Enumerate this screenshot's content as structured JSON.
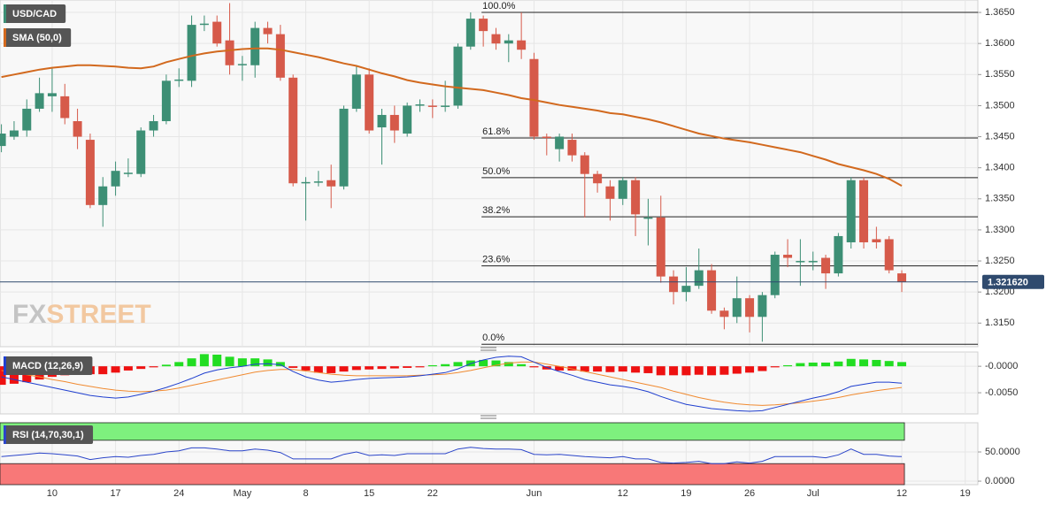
{
  "chart_data": [
    {
      "type": "candlestick",
      "title": "USD/CAD",
      "title_color": "#3d8f75",
      "categories": [
        null,
        null,
        null,
        null,
        "10",
        null,
        null,
        null,
        null,
        "17",
        null,
        null,
        null,
        null,
        "24",
        null,
        null,
        null,
        null,
        "May",
        null,
        null,
        null,
        null,
        "8",
        null,
        null,
        null,
        null,
        "15",
        null,
        null,
        null,
        null,
        "22",
        null,
        null,
        null,
        null,
        null,
        null,
        null,
        "Jun",
        null,
        null,
        null,
        null,
        null,
        null,
        "12",
        null,
        null,
        null,
        null,
        "19",
        null,
        null,
        null,
        null,
        "26",
        null,
        null,
        null,
        null,
        "Jul",
        null,
        null,
        null,
        null,
        null,
        null,
        "12",
        null,
        null,
        null,
        null,
        "19",
        null
      ],
      "open": [
        1.3435,
        1.345,
        1.346,
        1.3495,
        1.3515,
        1.3515,
        1.3475,
        1.3445,
        1.334,
        1.337,
        1.339,
        1.339,
        1.346,
        1.3475,
        1.354,
        1.354,
        1.363,
        1.3635,
        1.3605,
        1.3565,
        1.3565,
        1.3625,
        1.3615,
        1.3545,
        1.3375,
        1.3377,
        1.338,
        1.337,
        1.3495,
        1.355,
        1.3465,
        1.3485,
        1.3455,
        1.35,
        1.35,
        1.35,
        1.35,
        1.3595,
        1.364,
        1.3615,
        1.36,
        1.3605,
        1.3575,
        1.345,
        1.343,
        1.3445,
        1.342,
        1.339,
        1.337,
        1.335,
        1.338,
        1.332,
        1.332,
        1.3225,
        1.32,
        1.321,
        1.3235,
        1.317,
        1.316,
        1.319,
        1.316,
        1.3195,
        1.326,
        1.325,
        1.325,
        1.3255,
        1.323,
        1.328,
        1.338,
        1.3285,
        1.3285,
        1.323,
        null,
        null,
        null,
        null,
        null,
        null
      ],
      "high": [
        1.347,
        1.3475,
        1.351,
        1.3545,
        1.356,
        1.3535,
        1.3495,
        1.3455,
        1.3385,
        1.341,
        1.3415,
        1.3465,
        1.3485,
        1.355,
        1.356,
        1.3645,
        1.3645,
        1.3645,
        1.3665,
        1.358,
        1.3635,
        1.3635,
        1.363,
        1.355,
        1.3385,
        1.3395,
        1.3405,
        1.35,
        1.3565,
        1.356,
        1.3495,
        1.35,
        1.3505,
        1.351,
        1.351,
        1.354,
        1.36,
        1.365,
        1.3645,
        1.3625,
        1.3615,
        1.365,
        1.3585,
        1.3455,
        1.3455,
        1.3455,
        1.3425,
        1.3395,
        1.338,
        1.3385,
        1.3385,
        1.335,
        1.3355,
        1.3235,
        1.324,
        1.327,
        1.3245,
        1.3175,
        1.3225,
        1.3195,
        1.32,
        1.3265,
        1.3285,
        1.3285,
        1.3265,
        1.326,
        1.3295,
        1.3385,
        1.3385,
        1.3305,
        1.329,
        1.3235,
        null,
        null,
        null,
        null,
        null,
        null
      ],
      "low": [
        1.3425,
        1.3445,
        1.345,
        1.349,
        1.349,
        1.347,
        1.343,
        1.3335,
        1.3305,
        1.3355,
        1.3385,
        1.3385,
        1.345,
        1.347,
        1.353,
        1.353,
        1.362,
        1.3595,
        1.355,
        1.354,
        1.3545,
        1.36,
        1.354,
        1.337,
        1.3315,
        1.337,
        1.3335,
        1.3365,
        1.349,
        1.3455,
        1.3405,
        1.344,
        1.345,
        1.349,
        1.348,
        1.349,
        1.3495,
        1.359,
        1.3595,
        1.359,
        1.357,
        1.3575,
        1.3445,
        1.342,
        1.341,
        1.341,
        1.332,
        1.336,
        1.3315,
        1.334,
        1.329,
        1.3275,
        1.3215,
        1.318,
        1.3185,
        1.3205,
        1.3165,
        1.314,
        1.315,
        1.3135,
        1.312,
        1.319,
        1.324,
        1.321,
        1.3235,
        1.3205,
        1.3225,
        1.327,
        1.327,
        1.327,
        1.323,
        1.32,
        null,
        null,
        null,
        null,
        null,
        null
      ],
      "close": [
        1.3455,
        1.346,
        1.3495,
        1.352,
        1.352,
        1.348,
        1.345,
        1.334,
        1.337,
        1.3395,
        1.3392,
        1.346,
        1.3475,
        1.354,
        1.3542,
        1.363,
        1.3632,
        1.36,
        1.3565,
        1.3567,
        1.3625,
        1.3615,
        1.3545,
        1.3375,
        1.3377,
        1.3378,
        1.337,
        1.3495,
        1.355,
        1.346,
        1.3485,
        1.346,
        1.35,
        1.3502,
        1.3498,
        1.35,
        1.3595,
        1.364,
        1.362,
        1.36,
        1.3605,
        1.359,
        1.345,
        1.3448,
        1.345,
        1.342,
        1.339,
        1.3375,
        1.335,
        1.338,
        1.3325,
        1.332,
        1.3225,
        1.32,
        1.321,
        1.3235,
        1.317,
        1.316,
        1.319,
        1.316,
        1.3195,
        1.326,
        1.3255,
        1.325,
        1.325,
        1.323,
        1.329,
        1.338,
        1.328,
        1.328,
        1.3235,
        1.32162,
        null,
        null,
        null,
        null,
        null,
        null
      ],
      "up_color": "#3d8f75",
      "down_color": "#d65a4a",
      "sma": {
        "name": "SMA (50,0)",
        "color": "#d2691e",
        "values": [
          1.3546,
          1.355,
          1.3554,
          1.3558,
          1.3561,
          1.3563,
          1.3565,
          1.3565,
          1.3564,
          1.3563,
          1.3561,
          1.356,
          1.3563,
          1.357,
          1.3575,
          1.358,
          1.3584,
          1.3587,
          1.3589,
          1.3591,
          1.3592,
          1.3592,
          1.359,
          1.3586,
          1.3582,
          1.3578,
          1.3573,
          1.3568,
          1.3564,
          1.3558,
          1.3552,
          1.3547,
          1.3541,
          1.3537,
          1.3534,
          1.3531,
          1.3529,
          1.3527,
          1.3525,
          1.3521,
          1.3517,
          1.3512,
          1.3509,
          1.3505,
          1.3501,
          1.3498,
          1.3495,
          1.3492,
          1.3488,
          1.3486,
          1.3482,
          1.3478,
          1.3473,
          1.3467,
          1.3461,
          1.3455,
          1.3451,
          1.3447,
          1.3444,
          1.3441,
          1.3437,
          1.3433,
          1.3429,
          1.3425,
          1.3419,
          1.3413,
          1.3406,
          1.3401,
          1.3396,
          1.339,
          1.3382,
          1.3371,
          null,
          null,
          null,
          null,
          null,
          null
        ]
      },
      "fib_levels": [
        {
          "label": "100.0%",
          "value": 1.365
        },
        {
          "label": "61.8%",
          "value": 1.3448
        },
        {
          "label": "50.0%",
          "value": 1.3384
        },
        {
          "label": "38.2%",
          "value": 1.3321
        },
        {
          "label": "23.6%",
          "value": 1.3242
        },
        {
          "label": "0.0%",
          "value": 1.3116
        }
      ],
      "last_price": {
        "value": 1.32162,
        "label": "1.321620"
      },
      "ylim": [
        1.3112,
        1.367
      ],
      "yticks": [
        {
          "value": 1.315,
          "label": "1.3150"
        },
        {
          "value": 1.32,
          "label": "1.3200"
        },
        {
          "value": 1.325,
          "label": "1.3250"
        },
        {
          "value": 1.33,
          "label": "1.3300"
        },
        {
          "value": 1.335,
          "label": "1.3350"
        },
        {
          "value": 1.34,
          "label": "1.3400"
        },
        {
          "value": 1.345,
          "label": "1.3450"
        },
        {
          "value": 1.35,
          "label": "1.3500"
        },
        {
          "value": 1.355,
          "label": "1.3550"
        },
        {
          "value": 1.36,
          "label": "1.3600"
        },
        {
          "value": 1.365,
          "label": "1.3650"
        }
      ],
      "grid": true,
      "watermark_prefix": "FX",
      "watermark_suffix": "STREET"
    },
    {
      "type": "macd",
      "title": "MACD (12,26,9)",
      "title_color": "#1f3fcf",
      "histogram": {
        "up_color": "#22dd22",
        "down_color": "#ee1111",
        "values": [
          -0.0035,
          -0.0033,
          -0.003,
          -0.0025,
          -0.002,
          -0.0017,
          -0.0015,
          -0.0015,
          -0.0015,
          -0.0012,
          -0.0008,
          -0.0005,
          -0.0002,
          0.0003,
          0.0008,
          0.0015,
          0.0023,
          0.0022,
          0.0018,
          0.0015,
          0.0015,
          0.0013,
          0.0008,
          -0.0003,
          -0.0008,
          -0.0012,
          -0.0013,
          -0.001,
          -0.0007,
          -0.0006,
          -0.0005,
          -0.0004,
          -0.0003,
          -0.0002,
          0.0002,
          0.0004,
          0.0008,
          0.0011,
          0.0012,
          0.0011,
          0.0008,
          0.0004,
          -0.0002,
          -0.0006,
          -0.0008,
          -0.0008,
          -0.001,
          -0.001,
          -0.0011,
          -0.001,
          -0.0012,
          -0.0013,
          -0.0017,
          -0.0017,
          -0.0017,
          -0.0016,
          -0.0017,
          -0.0016,
          -0.0014,
          -0.0012,
          -0.0009,
          -0.0002,
          0.0002,
          0.0006,
          0.0007,
          0.0007,
          0.0009,
          0.0014,
          0.0013,
          0.0012,
          0.001,
          0.0008,
          null,
          null,
          null,
          null,
          null,
          null
        ]
      },
      "macd": {
        "color": "#1f3fcf",
        "values": [
          -0.002,
          -0.0025,
          -0.003,
          -0.0035,
          -0.004,
          -0.0045,
          -0.005,
          -0.0055,
          -0.0058,
          -0.006,
          -0.0058,
          -0.0053,
          -0.0047,
          -0.004,
          -0.0032,
          -0.0023,
          -0.0013,
          -0.0007,
          -0.0003,
          0.0,
          0.0004,
          0.0005,
          0.0003,
          -0.001,
          -0.002,
          -0.0026,
          -0.003,
          -0.0028,
          -0.0025,
          -0.0023,
          -0.0022,
          -0.0021,
          -0.002,
          -0.0018,
          -0.0015,
          -0.0012,
          -0.0005,
          0.0005,
          0.0012,
          0.0017,
          0.0019,
          0.0018,
          0.0008,
          -0.0002,
          -0.001,
          -0.0017,
          -0.0025,
          -0.003,
          -0.0035,
          -0.0038,
          -0.0042,
          -0.0048,
          -0.0057,
          -0.0065,
          -0.0072,
          -0.0076,
          -0.008,
          -0.0082,
          -0.0084,
          -0.0085,
          -0.0084,
          -0.0078,
          -0.0072,
          -0.0066,
          -0.006,
          -0.0055,
          -0.0048,
          -0.0038,
          -0.0034,
          -0.003,
          -0.003,
          -0.0032,
          null,
          null,
          null,
          null,
          null,
          null
        ]
      },
      "signal": {
        "color": "#f08a30",
        "values": [
          -0.0008,
          -0.0012,
          -0.0016,
          -0.002,
          -0.0025,
          -0.0029,
          -0.0034,
          -0.0038,
          -0.0042,
          -0.0045,
          -0.0047,
          -0.0048,
          -0.0047,
          -0.0045,
          -0.0041,
          -0.0036,
          -0.0031,
          -0.0026,
          -0.0021,
          -0.0016,
          -0.0011,
          -0.0008,
          -0.0006,
          -0.0006,
          -0.0009,
          -0.0012,
          -0.0015,
          -0.0017,
          -0.0018,
          -0.0018,
          -0.0018,
          -0.0018,
          -0.0018,
          -0.0017,
          -0.0016,
          -0.0015,
          -0.0012,
          -0.0008,
          -0.0003,
          0.0002,
          0.0006,
          0.0008,
          0.0008,
          0.0004,
          0.0,
          -0.0005,
          -0.001,
          -0.0015,
          -0.002,
          -0.0025,
          -0.003,
          -0.0035,
          -0.004,
          -0.0047,
          -0.0053,
          -0.0059,
          -0.0064,
          -0.0068,
          -0.0071,
          -0.0073,
          -0.0074,
          -0.0073,
          -0.0071,
          -0.0069,
          -0.0066,
          -0.0063,
          -0.0059,
          -0.0054,
          -0.005,
          -0.0046,
          -0.0043,
          -0.004,
          null,
          null,
          null,
          null,
          null,
          null
        ]
      },
      "ylim": [
        -0.009,
        0.0027
      ],
      "yticks": [
        {
          "value": 0,
          "label": "-0.0000"
        },
        {
          "value": -0.005,
          "label": "-0.0050"
        }
      ]
    },
    {
      "type": "rsi",
      "title": "RSI (14,70,30,1)",
      "title_color": "#2b45c9",
      "color": "#2b45c9",
      "values": [
        42,
        44,
        46,
        48,
        47,
        45,
        43,
        37,
        40,
        42,
        41,
        44,
        46,
        50,
        52,
        57,
        57,
        55,
        52,
        52,
        55,
        53,
        49,
        38,
        38,
        38,
        38,
        46,
        50,
        44,
        45,
        44,
        47,
        47,
        47,
        47,
        55,
        58,
        56,
        55,
        55,
        54,
        46,
        45,
        46,
        44,
        42,
        41,
        40,
        42,
        38,
        38,
        32,
        31,
        32,
        34,
        30,
        30,
        33,
        31,
        34,
        42,
        42,
        42,
        42,
        40,
        45,
        55,
        46,
        46,
        43,
        42,
        null,
        null,
        null,
        null,
        null,
        null
      ],
      "overbought": 70,
      "oversold": 30,
      "overbought_color": "#7ef07e",
      "oversold_color": "#f87878",
      "ylim": [
        -6,
        100
      ],
      "yticks": [
        {
          "value": 50,
          "label": "50.0000"
        },
        {
          "value": 0,
          "label": "0.0000"
        }
      ]
    }
  ]
}
